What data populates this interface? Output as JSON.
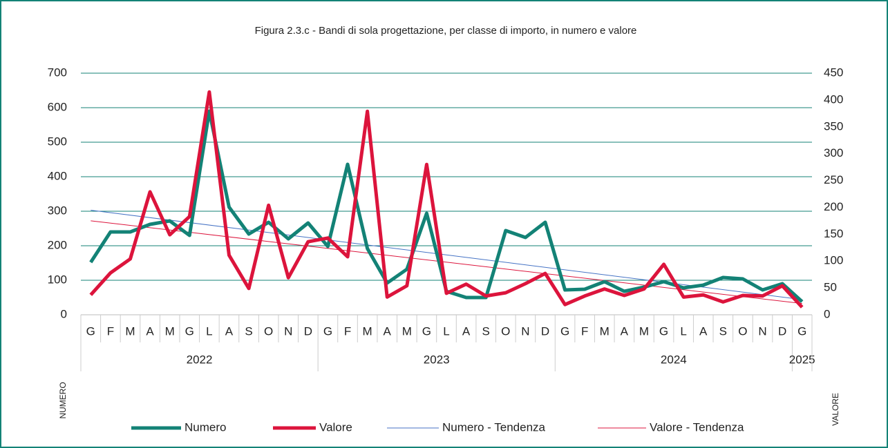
{
  "chart_data": {
    "type": "line",
    "title": "Figura 2.3.c - Bandi di sola progettazione, per classe di importo, in numero e valore",
    "categories": [
      "G",
      "F",
      "M",
      "A",
      "M",
      "G",
      "L",
      "A",
      "S",
      "O",
      "N",
      "D",
      "G",
      "F",
      "M",
      "A",
      "M",
      "G",
      "L",
      "A",
      "S",
      "O",
      "N",
      "D",
      "G",
      "F",
      "M",
      "A",
      "M",
      "G",
      "L",
      "A",
      "S",
      "O",
      "N",
      "D",
      "G"
    ],
    "x_groups": [
      {
        "label": "2022",
        "count": 12
      },
      {
        "label": "2023",
        "count": 12
      },
      {
        "label": "2024",
        "count": 12
      },
      {
        "label": "2025",
        "count": 1
      }
    ],
    "ylabel": "NUMERO",
    "y2label": "VALORE",
    "ylim": [
      0,
      700
    ],
    "yticks": [
      0,
      100,
      200,
      300,
      400,
      500,
      600,
      700
    ],
    "y2lim": [
      0,
      450
    ],
    "y2ticks": [
      0,
      50,
      100,
      150,
      200,
      250,
      300,
      350,
      400,
      450
    ],
    "grid": true,
    "legend": "bottom",
    "series": [
      {
        "name": "Numero",
        "color": "#138276",
        "axis": "y",
        "values": [
          152,
          240,
          240,
          262,
          272,
          230,
          590,
          312,
          234,
          268,
          220,
          266,
          198,
          436,
          192,
          92,
          132,
          294,
          68,
          50,
          50,
          244,
          224,
          268,
          72,
          74,
          96,
          68,
          80,
          96,
          78,
          86,
          108,
          104,
          72,
          90,
          38
        ]
      },
      {
        "name": "Valore",
        "color": "#dc143c",
        "axis": "y2",
        "values": [
          37,
          78,
          104,
          229,
          149,
          183,
          415,
          111,
          49,
          204,
          69,
          136,
          143,
          108,
          379,
          33,
          54,
          280,
          40,
          57,
          35,
          41,
          58,
          77,
          19,
          35,
          48,
          36,
          48,
          94,
          33,
          37,
          24,
          36,
          35,
          54,
          14
        ]
      }
    ],
    "trends": [
      {
        "name": "Numero - Tendenza",
        "color": "#4472c4",
        "axis": "y",
        "start": 303,
        "end": 44
      },
      {
        "name": "Valore - Tendenza",
        "color": "#dc143c",
        "axis": "y2",
        "start": 175,
        "end": 21
      }
    ]
  }
}
